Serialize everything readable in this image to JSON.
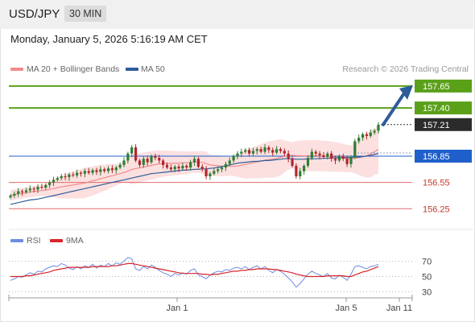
{
  "header": {
    "symbol": "USD/JPY",
    "interval": "30 MIN"
  },
  "datetime": "Monday, January 5, 2026 5:16:19 AM CET",
  "legend": [
    {
      "label": "MA 20 + Bollinger Bands",
      "color": "#f28b8b"
    },
    {
      "label": "MA 50",
      "color": "#2e5c9a"
    }
  ],
  "credit": "Research © 2026 Trading Central",
  "colors": {
    "up": "#2f7d32",
    "down": "#b0262c",
    "resistance": "#5aa019",
    "support": "#e06c6c",
    "pivot": "#1f5fcc",
    "rsi": "#6d8de0",
    "rsi_ma": "#d8232a",
    "arrow": "#2e5c9a",
    "band": "#fbd6d6"
  },
  "chart_data": [
    {
      "type": "candlestick",
      "title": "USD/JPY 30 MIN",
      "x_ticks": [
        "Jan 1",
        "Jan 5",
        "Jan 11"
      ],
      "ylim": [
        156.17,
        157.75
      ],
      "levels": [
        {
          "value": 157.65,
          "label": "157.65",
          "kind": "resistance"
        },
        {
          "value": 157.4,
          "label": "157.40",
          "kind": "resistance"
        },
        {
          "value": 157.21,
          "label": "157.21",
          "kind": "last"
        },
        {
          "value": 156.85,
          "label": "156.85",
          "kind": "pivot"
        },
        {
          "value": 156.55,
          "label": "156.55",
          "kind": "support"
        },
        {
          "value": 156.25,
          "label": "156.25",
          "kind": "support"
        }
      ],
      "close_prices": [
        156.4,
        156.42,
        156.45,
        156.44,
        156.46,
        156.48,
        156.47,
        156.5,
        156.49,
        156.52,
        156.55,
        156.58,
        156.6,
        156.62,
        156.61,
        156.64,
        156.63,
        156.66,
        156.65,
        156.68,
        156.66,
        156.69,
        156.67,
        156.7,
        156.68,
        156.71,
        156.69,
        156.72,
        156.75,
        156.8,
        156.88,
        156.95,
        156.8,
        156.75,
        156.82,
        156.78,
        156.85,
        156.83,
        156.8,
        156.75,
        156.72,
        156.7,
        156.73,
        156.71,
        156.74,
        156.72,
        156.78,
        156.82,
        156.73,
        156.7,
        156.62,
        156.65,
        156.68,
        156.7,
        156.72,
        156.76,
        156.8,
        156.85,
        156.88,
        156.9,
        156.92,
        156.88,
        156.91,
        156.93,
        156.9,
        156.95,
        156.92,
        156.89,
        156.93,
        156.91,
        156.88,
        156.82,
        156.74,
        156.62,
        156.68,
        156.74,
        156.83,
        156.9,
        156.88,
        156.86,
        156.84,
        156.88,
        156.82,
        156.8,
        156.85,
        156.82,
        156.76,
        156.84,
        157.02,
        157.06,
        157.1,
        157.08,
        157.12,
        157.14,
        157.21
      ],
      "ma50": [
        156.3,
        156.31,
        156.32,
        156.33,
        156.34,
        156.35,
        156.355,
        156.36,
        156.37,
        156.38,
        156.39,
        156.4,
        156.41,
        156.42,
        156.43,
        156.44,
        156.45,
        156.46,
        156.47,
        156.48,
        156.49,
        156.5,
        156.51,
        156.52,
        156.53,
        156.54,
        156.55,
        156.56,
        156.57,
        156.58,
        156.59,
        156.6,
        156.61,
        156.62,
        156.63,
        156.64,
        156.65,
        156.655,
        156.66,
        156.665,
        156.67,
        156.675,
        156.68,
        156.685,
        156.69,
        156.69,
        156.695,
        156.7,
        156.7,
        156.705,
        156.705,
        156.71,
        156.715,
        156.72,
        156.73,
        156.74,
        156.75,
        156.76,
        156.77,
        156.775,
        156.78,
        156.785,
        156.79,
        156.79,
        156.795,
        156.8,
        156.8,
        156.805,
        156.81,
        156.815,
        156.82,
        156.82,
        156.82,
        156.815,
        156.815,
        156.815,
        156.82,
        156.82,
        156.82,
        156.82,
        156.825,
        156.825,
        156.83,
        156.83,
        156.83,
        156.83,
        156.835,
        156.835,
        156.84,
        156.84,
        156.845,
        156.85,
        156.86,
        156.87,
        156.88
      ]
    },
    {
      "type": "line",
      "series": [
        {
          "name": "RSI"
        },
        {
          "name": "9MA"
        }
      ],
      "yticks": [
        70,
        50,
        30
      ],
      "ylim": [
        20,
        80
      ],
      "rsi": [
        45,
        47,
        50,
        49,
        52,
        55,
        53,
        57,
        56,
        60,
        62,
        64,
        63,
        67,
        65,
        61,
        59,
        63,
        60,
        64,
        62,
        66,
        61,
        65,
        63,
        67,
        64,
        68,
        66,
        70,
        75,
        73,
        60,
        58,
        63,
        60,
        65,
        62,
        58,
        55,
        53,
        50,
        54,
        52,
        55,
        53,
        58,
        60,
        52,
        50,
        47,
        52,
        55,
        57,
        56,
        59,
        58,
        61,
        62,
        60,
        63,
        59,
        62,
        64,
        60,
        63,
        58,
        55,
        59,
        57,
        53,
        48,
        43,
        36,
        41,
        47,
        53,
        57,
        54,
        52,
        50,
        54,
        48,
        47,
        52,
        49,
        45,
        53,
        63,
        64,
        62,
        60,
        63,
        64,
        66
      ],
      "rsi_ma": [
        50,
        50,
        50,
        50,
        51,
        51,
        52,
        53,
        54,
        55,
        56,
        58,
        59,
        60,
        61,
        62,
        62,
        62,
        62,
        62,
        62,
        63,
        63,
        63,
        63,
        63,
        64,
        64,
        65,
        66,
        67,
        67,
        66,
        65,
        64,
        63,
        62,
        61,
        60,
        59,
        58,
        57,
        56,
        55,
        54,
        54,
        54,
        54,
        54,
        53,
        53,
        52,
        53,
        53,
        54,
        55,
        56,
        57,
        57,
        58,
        58,
        59,
        59,
        60,
        60,
        60,
        60,
        59,
        59,
        58,
        57,
        56,
        55,
        53,
        52,
        51,
        50,
        50,
        50,
        50,
        50,
        51,
        51,
        51,
        51,
        51,
        50,
        50,
        52,
        54,
        56,
        57,
        59,
        61,
        63
      ]
    }
  ]
}
